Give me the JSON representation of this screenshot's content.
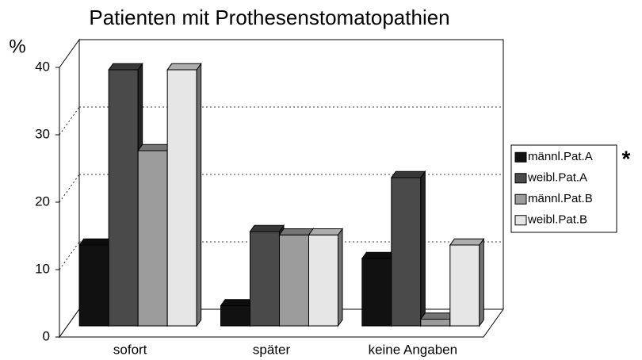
{
  "chart_data": {
    "type": "bar3d",
    "title": "Patienten mit Prothesenstomatopathien",
    "y_label": "%",
    "categories": [
      "sofort",
      "später",
      "keine Angaben"
    ],
    "series": [
      {
        "name": "männl.Pat.A",
        "color": "#111111",
        "values": [
          12,
          3,
          10
        ]
      },
      {
        "name": "weibl.Pat.A",
        "color": "#4a4a4a",
        "values": [
          38,
          14,
          22
        ]
      },
      {
        "name": "männl.Pat.B",
        "color": "#9c9c9c",
        "values": [
          26,
          13.5,
          1
        ]
      },
      {
        "name": "weibl.Pat.B",
        "color": "#e6e6e6",
        "values": [
          38,
          13.5,
          12
        ]
      }
    ],
    "ylim": [
      0,
      40
    ],
    "yticks": [
      0,
      10,
      20,
      30,
      40
    ],
    "grid": true,
    "legend": "right",
    "annotation": "*"
  }
}
